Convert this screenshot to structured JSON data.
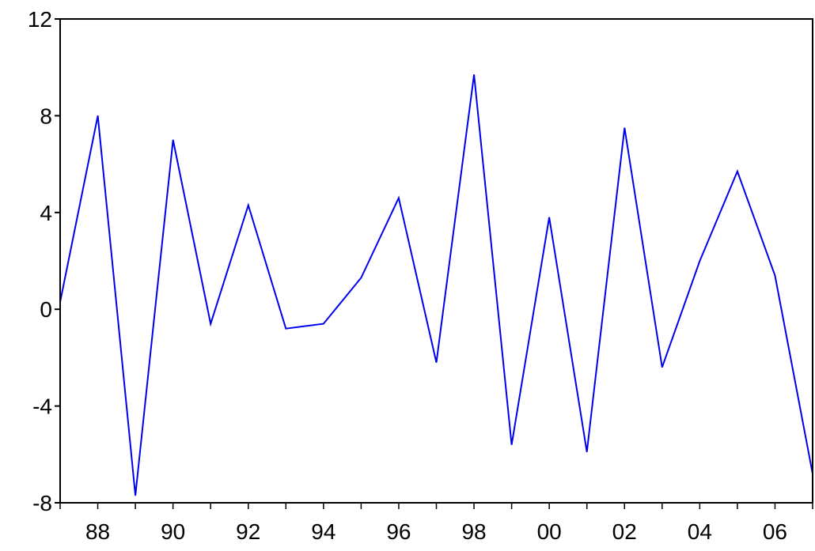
{
  "chart_data": {
    "type": "line",
    "title": "",
    "xlabel": "",
    "ylabel": "",
    "x": [
      1987,
      1988,
      1989,
      1990,
      1991,
      1992,
      1993,
      1994,
      1995,
      1996,
      1997,
      1998,
      1999,
      2000,
      2001,
      2002,
      2003,
      2004,
      2005,
      2006,
      2007
    ],
    "series": [
      {
        "values": [
          0.3,
          8.0,
          -7.7,
          7.0,
          -0.6,
          4.3,
          -0.8,
          -0.6,
          1.3,
          4.6,
          -2.2,
          9.7,
          -5.6,
          3.8,
          -5.9,
          7.5,
          -2.4,
          2.0,
          5.7,
          1.4,
          -6.8
        ]
      }
    ],
    "xlim": [
      1987,
      2007
    ],
    "ylim": [
      -8,
      12
    ],
    "yticks": [
      12,
      8,
      4,
      0,
      -4,
      -8
    ],
    "yticklabels": [
      "12",
      "8",
      "4",
      "0",
      "-4",
      "-8"
    ],
    "xtick_years": [
      1988,
      1990,
      1992,
      1994,
      1996,
      1998,
      2000,
      2002,
      2004,
      2006
    ],
    "xticklabels": [
      "88",
      "90",
      "92",
      "94",
      "96",
      "98",
      "00",
      "02",
      "04",
      "06"
    ],
    "grid": false,
    "colors": {
      "line": "#0000ee",
      "axis": "#000000"
    }
  }
}
